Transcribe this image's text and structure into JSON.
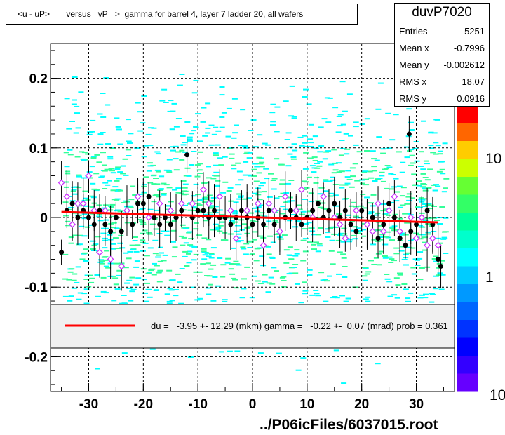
{
  "header": {
    "title": "<u - uP>       versus   vP =>  gamma for barrel 4, layer 7 ladder 20, all wafers"
  },
  "stats": {
    "name": "duvP7020",
    "rows": [
      {
        "label": "Entries",
        "value": "5251"
      },
      {
        "label": "Mean x",
        "value": "-0.7996"
      },
      {
        "label": "Mean y",
        "value": "-0.002612"
      },
      {
        "label": "RMS x",
        "value": "18.07"
      },
      {
        "label": "RMS y",
        "value": "0.0916"
      }
    ]
  },
  "fit_legend": {
    "text": "du =   -3.95 +- 12.29 (mkm) gamma =   -0.22 +-  0.07 (mrad) prob = 0.361",
    "line_color": "#ff0000"
  },
  "footer": {
    "file": "../P06icFiles/6037015.root"
  },
  "colors": {
    "scatter": "#00ffff",
    "profile_markers": "#000000",
    "open_markers": "#cc33ff",
    "fit_line": "#ff0000"
  },
  "chart_data": {
    "type": "scatter",
    "title": "<u - uP>       versus   vP =>  gamma for barrel 4, layer 7 ladder 20, all wafers",
    "xlim": [
      -37,
      37
    ],
    "ylim": [
      -0.25,
      0.25
    ],
    "x_ticks": [
      -30,
      -20,
      -10,
      0,
      10,
      20,
      30
    ],
    "y_ticks": [
      -0.2,
      -0.1,
      0,
      0.1,
      0.2
    ],
    "x_tick_labels": [
      "-30",
      "-20",
      "-10",
      "0",
      "10",
      "20",
      "30"
    ],
    "y_tick_labels": [
      "-0.2",
      "-0.1",
      "0",
      "0.1",
      "0.2"
    ],
    "grid": true,
    "colorbar": {
      "tick_labels": [
        "1",
        "10"
      ],
      "bottom_label": "10"
    },
    "fit_line": {
      "x": [
        -35,
        34
      ],
      "y": [
        0.008,
        -0.007
      ]
    },
    "series": [
      {
        "marker": "filled-circle",
        "points": [
          [
            -35,
            -0.05
          ],
          [
            -34,
            0.01
          ],
          [
            -33,
            0.02
          ],
          [
            -32,
            0.0
          ],
          [
            -31,
            0.01
          ],
          [
            -30,
            0.0
          ],
          [
            -29,
            -0.01
          ],
          [
            -28,
            0.01
          ],
          [
            -27,
            -0.01
          ],
          [
            -26,
            -0.02
          ],
          [
            -25,
            0.0
          ],
          [
            -24,
            -0.02
          ],
          [
            -23,
            0.01
          ],
          [
            -22,
            -0.01
          ],
          [
            -21,
            0.02
          ],
          [
            -20,
            0.02
          ],
          [
            -19,
            0.03
          ],
          [
            -18,
            0.0
          ],
          [
            -17,
            -0.01
          ],
          [
            -16,
            0.0
          ],
          [
            -15,
            -0.01
          ],
          [
            -14,
            0.0
          ],
          [
            -13,
            0.01
          ],
          [
            -12,
            0.09
          ],
          [
            -11,
            0.0
          ],
          [
            -10,
            0.01
          ],
          [
            -9,
            0.01
          ],
          [
            -8,
            0.0
          ],
          [
            -7,
            0.01
          ],
          [
            -6,
            0.0
          ],
          [
            -5,
            0.0
          ],
          [
            -4,
            -0.01
          ],
          [
            -3,
            0.0
          ],
          [
            -2,
            0.01
          ],
          [
            -1,
            0.0
          ],
          [
            0,
            -0.01
          ],
          [
            1,
            0.0
          ],
          [
            2,
            -0.01
          ],
          [
            3,
            0.01
          ],
          [
            4,
            -0.01
          ],
          [
            5,
            -0.02
          ],
          [
            6,
            0.0
          ],
          [
            7,
            0.01
          ],
          [
            8,
            0.0
          ],
          [
            9,
            -0.01
          ],
          [
            10,
            0.0
          ],
          [
            11,
            0.01
          ],
          [
            12,
            0.02
          ],
          [
            13,
            0.0
          ],
          [
            14,
            0.01
          ],
          [
            15,
            0.02
          ],
          [
            16,
            0.0
          ],
          [
            17,
            0.01
          ],
          [
            18,
            -0.01
          ],
          [
            19,
            -0.02
          ],
          [
            20,
            0.01
          ],
          [
            21,
            -0.01
          ],
          [
            22,
            0.0
          ],
          [
            23,
            -0.03
          ],
          [
            24,
            -0.01
          ],
          [
            25,
            0.02
          ],
          [
            26,
            0.0
          ],
          [
            27,
            -0.03
          ],
          [
            28,
            -0.04
          ],
          [
            28.7,
            0.12
          ],
          [
            29,
            -0.02
          ],
          [
            30,
            -0.01
          ],
          [
            31,
            0.0
          ],
          [
            32,
            0.01
          ],
          [
            33,
            -0.01
          ],
          [
            34,
            -0.06
          ],
          [
            34.5,
            -0.07
          ]
        ]
      },
      {
        "marker": "open-diamond",
        "points": [
          [
            -35,
            0.05
          ],
          [
            -34,
            0.03
          ],
          [
            -33,
            -0.01
          ],
          [
            -32,
            0.02
          ],
          [
            -31,
            0.02
          ],
          [
            -30,
            0.06
          ],
          [
            -29,
            0.01
          ],
          [
            -28,
            -0.05
          ],
          [
            -27,
            0.01
          ],
          [
            -26,
            -0.06
          ],
          [
            -24,
            -0.07
          ],
          [
            -23,
            0.01
          ],
          [
            -21,
            0.03
          ],
          [
            -19,
            0.0
          ],
          [
            -17,
            0.02
          ],
          [
            -15,
            0.01
          ],
          [
            -13,
            0.02
          ],
          [
            -11,
            0.02
          ],
          [
            -9,
            0.04
          ],
          [
            -8,
            0.02
          ],
          [
            -6,
            0.03
          ],
          [
            -4,
            0.01
          ],
          [
            -3,
            -0.03
          ],
          [
            -1,
            0.01
          ],
          [
            1,
            0.02
          ],
          [
            2,
            -0.04
          ],
          [
            3,
            0.02
          ],
          [
            4,
            0.01
          ],
          [
            5,
            -0.02
          ],
          [
            6,
            0.03
          ],
          [
            8,
            0.01
          ],
          [
            9,
            0.04
          ],
          [
            11,
            0.0
          ],
          [
            13,
            0.03
          ],
          [
            15,
            0.0
          ],
          [
            16,
            -0.01
          ],
          [
            17,
            -0.03
          ],
          [
            19,
            0.01
          ],
          [
            21,
            -0.01
          ],
          [
            22,
            -0.02
          ],
          [
            23,
            0.02
          ],
          [
            24,
            -0.02
          ],
          [
            25,
            0.01
          ],
          [
            26,
            0.03
          ],
          [
            27,
            -0.02
          ],
          [
            29,
            0.0
          ],
          [
            30,
            -0.03
          ],
          [
            31,
            0.0
          ],
          [
            32,
            -0.04
          ],
          [
            33,
            -0.03
          ],
          [
            34,
            -0.04
          ]
        ]
      }
    ]
  }
}
